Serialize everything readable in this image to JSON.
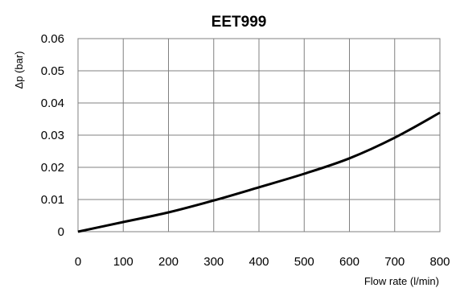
{
  "chart_data": {
    "type": "line",
    "title": "EET999",
    "xlabel": "Flow rate (l/min)",
    "ylabel": "Δp (bar)",
    "xlim": [
      0,
      800
    ],
    "ylim": [
      0,
      0.06
    ],
    "x_ticks": [
      0,
      100,
      200,
      300,
      400,
      500,
      600,
      700,
      800
    ],
    "y_ticks": [
      0,
      0.01,
      0.02,
      0.03,
      0.04,
      0.05,
      0.06
    ],
    "x_tick_labels": [
      "0",
      "100",
      "200",
      "300",
      "400",
      "500",
      "600",
      "700",
      "800"
    ],
    "y_tick_labels": [
      "0",
      "0.01",
      "0.02",
      "0.03",
      "0.04",
      "0.05",
      "0.06"
    ],
    "grid": true,
    "legend": "none",
    "line_color": "#000000",
    "series": [
      {
        "x": [
          0,
          100,
          200,
          300,
          400,
          500,
          600,
          700,
          800
        ],
        "y": [
          0,
          0.003,
          0.006,
          0.0097,
          0.0138,
          0.018,
          0.0228,
          0.0292,
          0.037
        ]
      }
    ]
  }
}
